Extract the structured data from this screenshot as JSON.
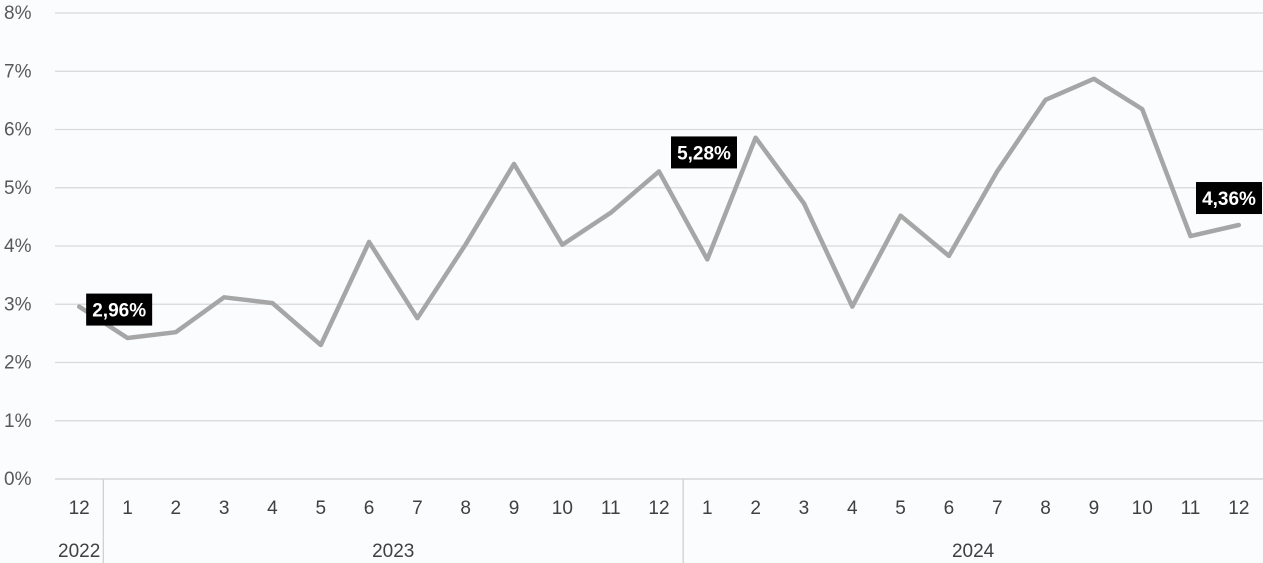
{
  "chart_data": {
    "type": "line",
    "title": "",
    "xlabel": "",
    "ylabel": "",
    "ylim": [
      0,
      8
    ],
    "yticks": [
      "0%",
      "1%",
      "2%",
      "3%",
      "4%",
      "5%",
      "6%",
      "7%",
      "8%"
    ],
    "grid": true,
    "line_color": "#a6a6a6",
    "label_bg": "#000000",
    "year_groups": [
      {
        "label": "2022",
        "count": 1
      },
      {
        "label": "2023",
        "count": 12
      },
      {
        "label": "2024",
        "count": 12
      }
    ],
    "categories": [
      "12",
      "1",
      "2",
      "3",
      "4",
      "5",
      "6",
      "7",
      "8",
      "9",
      "10",
      "11",
      "12",
      "1",
      "2",
      "3",
      "4",
      "5",
      "6",
      "7",
      "8",
      "9",
      "10",
      "11",
      "12"
    ],
    "series": [
      {
        "values": [
          2.96,
          2.42,
          2.52,
          3.12,
          3.02,
          2.3,
          4.07,
          2.76,
          4.03,
          5.41,
          4.02,
          4.57,
          5.28,
          3.77,
          5.86,
          4.73,
          2.96,
          4.52,
          3.83,
          5.28,
          6.51,
          6.87,
          6.35,
          4.17,
          4.36
        ]
      }
    ],
    "data_labels": [
      {
        "index": 0,
        "text": "2,96%"
      },
      {
        "index": 12,
        "text": "5,28%"
      },
      {
        "index": 24,
        "text": "4,36%"
      }
    ]
  }
}
